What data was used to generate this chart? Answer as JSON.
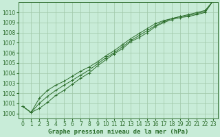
{
  "title": "Graphe pression niveau de la mer (hPa)",
  "bg_color": "#c8ecd8",
  "grid_color": "#a0c8a8",
  "line_color": "#2d6e2d",
  "marker_color": "#2d6e2d",
  "ylim": [
    999.5,
    1011.0
  ],
  "xlim": [
    -0.5,
    23.5
  ],
  "yticks": [
    1000,
    1001,
    1002,
    1003,
    1004,
    1005,
    1006,
    1007,
    1008,
    1009,
    1010
  ],
  "xticks": [
    0,
    1,
    2,
    3,
    4,
    5,
    6,
    7,
    8,
    9,
    10,
    11,
    12,
    13,
    14,
    15,
    16,
    17,
    18,
    19,
    20,
    21,
    22,
    23
  ],
  "series": [
    [
      1000.7,
      1000.1,
      1000.5,
      1001.1,
      1001.8,
      1002.3,
      1002.9,
      1003.5,
      1004.0,
      1004.7,
      1005.3,
      1005.9,
      1006.4,
      1007.1,
      1007.5,
      1008.0,
      1008.6,
      1009.0,
      1009.3,
      1009.5,
      1009.6,
      1009.8,
      1010.0,
      1011.2
    ],
    [
      1000.7,
      1000.1,
      1001.0,
      1001.7,
      1002.3,
      1002.8,
      1003.3,
      1003.8,
      1004.3,
      1004.9,
      1005.5,
      1006.0,
      1006.6,
      1007.2,
      1007.7,
      1008.2,
      1008.7,
      1009.1,
      1009.4,
      1009.6,
      1009.7,
      1009.9,
      1010.1,
      1011.2
    ],
    [
      1000.7,
      1000.1,
      1001.5,
      1002.3,
      1002.8,
      1003.2,
      1003.7,
      1004.2,
      1004.6,
      1005.1,
      1005.7,
      1006.2,
      1006.8,
      1007.4,
      1007.9,
      1008.4,
      1008.9,
      1009.2,
      1009.4,
      1009.6,
      1009.8,
      1010.0,
      1010.2,
      1011.2
    ]
  ],
  "xlabel_fontsize": 5.5,
  "ylabel_fontsize": 5.5,
  "title_fontsize": 6.5,
  "figwidth": 3.2,
  "figheight": 2.0,
  "dpi": 100
}
